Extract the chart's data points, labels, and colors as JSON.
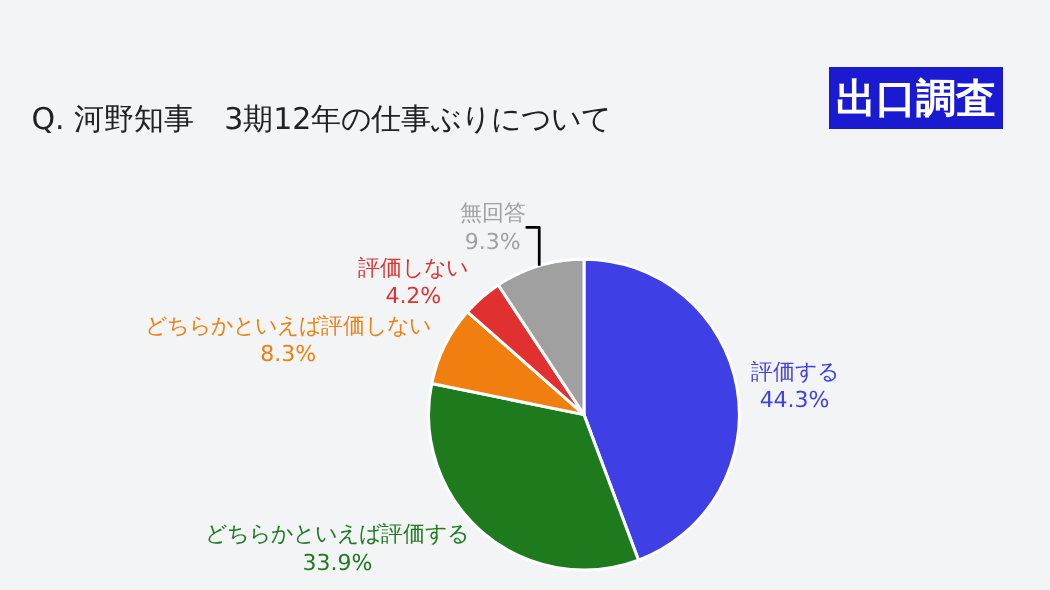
{
  "chart_data": {
    "type": "pie",
    "title": "Q. 河野知事　3期12年の仕事ぶりについて",
    "subtitle": "出口調査",
    "categories": [
      "評価する",
      "どちらかといえば評価する",
      "どちらかといえば評価しない",
      "評価しない",
      "無回答"
    ],
    "values": [
      44.3,
      33.9,
      8.3,
      4.2,
      9.3
    ],
    "value_labels": [
      "44.3%",
      "33.9%",
      "8.3%",
      "4.2%",
      "9.3%"
    ],
    "colors": [
      "#3f3fe6",
      "#1d7a1d",
      "#f07f10",
      "#e03030",
      "#a0a0a0"
    ],
    "legend": false
  }
}
